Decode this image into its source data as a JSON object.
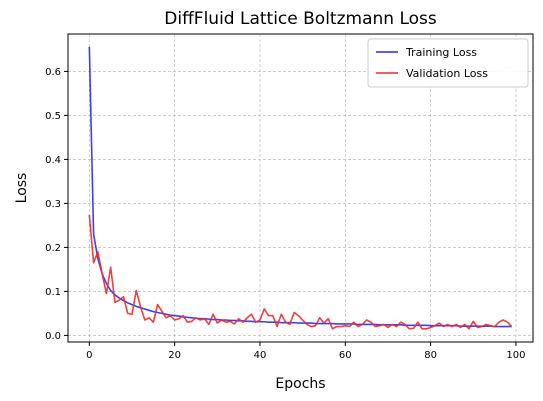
{
  "chart_data": {
    "type": "line",
    "title": "DiffFluid Lattice Boltzmann Loss",
    "xlabel": "Epochs",
    "ylabel": "Loss",
    "xlim": [
      -5,
      104
    ],
    "ylim": [
      -0.015,
      0.685
    ],
    "xticks": [
      0,
      20,
      40,
      60,
      80,
      100
    ],
    "yticks": [
      0.0,
      0.1,
      0.2,
      0.3,
      0.4,
      0.5,
      0.6
    ],
    "grid": true,
    "legend_position": "top-right",
    "series": [
      {
        "name": "Training Loss",
        "color": "#2a2aee",
        "values": [
          0.656,
          0.23,
          0.175,
          0.14,
          0.118,
          0.102,
          0.092,
          0.085,
          0.079,
          0.074,
          0.07,
          0.066,
          0.063,
          0.06,
          0.057,
          0.054,
          0.052,
          0.05,
          0.048,
          0.046,
          0.045,
          0.044,
          0.042,
          0.041,
          0.04,
          0.039,
          0.038,
          0.038,
          0.037,
          0.036,
          0.036,
          0.035,
          0.035,
          0.034,
          0.034,
          0.033,
          0.033,
          0.032,
          0.032,
          0.031,
          0.031,
          0.031,
          0.03,
          0.03,
          0.03,
          0.029,
          0.029,
          0.029,
          0.029,
          0.028,
          0.028,
          0.028,
          0.028,
          0.027,
          0.027,
          0.027,
          0.027,
          0.027,
          0.026,
          0.026,
          0.026,
          0.026,
          0.026,
          0.025,
          0.025,
          0.025,
          0.025,
          0.025,
          0.024,
          0.024,
          0.024,
          0.024,
          0.024,
          0.024,
          0.023,
          0.023,
          0.023,
          0.023,
          0.023,
          0.023,
          0.022,
          0.022,
          0.022,
          0.022,
          0.022,
          0.022,
          0.022,
          0.021,
          0.021,
          0.021,
          0.021,
          0.021,
          0.021,
          0.021,
          0.021,
          0.02,
          0.02,
          0.02,
          0.02,
          0.02
        ]
      },
      {
        "name": "Validation Loss",
        "color": "#ee2a2a",
        "values": [
          0.274,
          0.165,
          0.19,
          0.14,
          0.095,
          0.155,
          0.075,
          0.08,
          0.088,
          0.05,
          0.048,
          0.102,
          0.065,
          0.035,
          0.04,
          0.03,
          0.07,
          0.055,
          0.04,
          0.045,
          0.035,
          0.038,
          0.045,
          0.03,
          0.032,
          0.04,
          0.035,
          0.038,
          0.025,
          0.048,
          0.028,
          0.035,
          0.03,
          0.032,
          0.026,
          0.038,
          0.03,
          0.04,
          0.048,
          0.03,
          0.035,
          0.06,
          0.045,
          0.045,
          0.02,
          0.048,
          0.03,
          0.025,
          0.052,
          0.045,
          0.035,
          0.025,
          0.02,
          0.022,
          0.04,
          0.028,
          0.038,
          0.015,
          0.02,
          0.02,
          0.022,
          0.02,
          0.03,
          0.02,
          0.025,
          0.035,
          0.03,
          0.02,
          0.022,
          0.025,
          0.018,
          0.025,
          0.02,
          0.03,
          0.025,
          0.015,
          0.016,
          0.03,
          0.015,
          0.015,
          0.018,
          0.022,
          0.028,
          0.02,
          0.025,
          0.02,
          0.025,
          0.018,
          0.025,
          0.015,
          0.032,
          0.018,
          0.02,
          0.025,
          0.022,
          0.02,
          0.03,
          0.035,
          0.03,
          0.02
        ]
      }
    ]
  }
}
